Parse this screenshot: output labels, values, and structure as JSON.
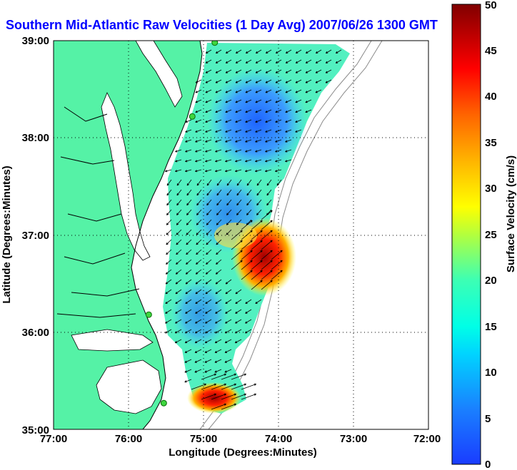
{
  "title": "Southern Mid-Atlantic Raw Velocities (1 Day Avg) 2007/06/26 1300 GMT",
  "xlabel": "Longitude (Degrees:Minutes)",
  "ylabel": "Latitude (Degrees:Minutes)",
  "x_ticks": [
    "77:00",
    "76:00",
    "75:00",
    "74:00",
    "73:00",
    "72:00"
  ],
  "y_ticks": [
    "35:00",
    "36:00",
    "37:00",
    "38:00",
    "39:00"
  ],
  "colorbar": {
    "label": "Surface Velocity (cm/s)",
    "ticks": [
      "0",
      "5",
      "10",
      "15",
      "20",
      "25",
      "30",
      "35",
      "40",
      "45",
      "50"
    ],
    "range": [
      0,
      50
    ]
  },
  "colors": {
    "land": "#55f2a6",
    "water": "#ffffff",
    "title": "#0000ff",
    "station": "#3fd63f"
  },
  "map_extent": {
    "lon": [
      -77,
      -72
    ],
    "lat": [
      35,
      39
    ]
  },
  "stations": [
    {
      "lon": -74.85,
      "lat": 38.98
    },
    {
      "lon": -75.15,
      "lat": 38.22
    },
    {
      "lon": -75.73,
      "lat": 36.18
    },
    {
      "lon": -75.53,
      "lat": 35.27
    }
  ]
}
